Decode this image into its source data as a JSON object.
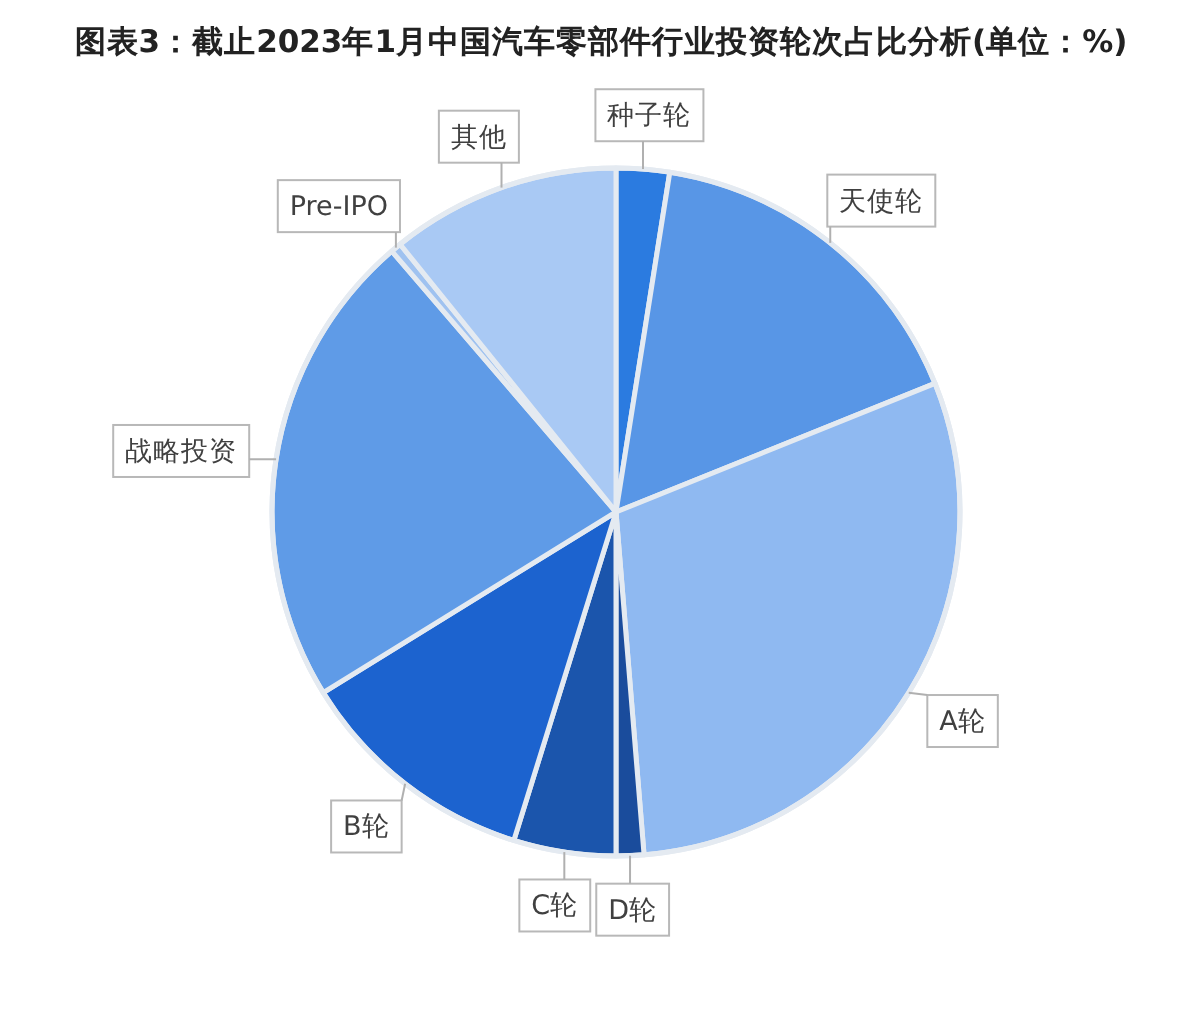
{
  "chart_data": {
    "type": "pie",
    "title": "图表3：截止2023年1月中国汽车零部件行业投资轮次占比分析(单位：%)",
    "categories": [
      "种子轮",
      "天使轮",
      "A轮",
      "D轮",
      "C轮",
      "B轮",
      "战略投资",
      "Pre-IPO",
      "其他"
    ],
    "values": [
      2.5,
      16.4,
      29.8,
      1.3,
      4.8,
      11.4,
      22.5,
      0.5,
      10.8
    ],
    "colors": [
      "#2b7be0",
      "#5896e6",
      "#8fb9f1",
      "#1a4c9c",
      "#1b55ac",
      "#1c63cf",
      "#5f9be7",
      "#9fc2f0",
      "#a9c9f4"
    ]
  }
}
